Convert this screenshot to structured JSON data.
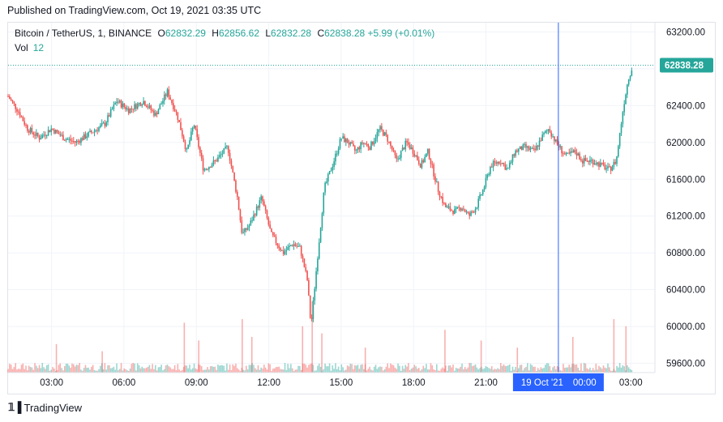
{
  "header": {
    "published": "Published on TradingView.com, Oct 19, 2021 03:35 UTC"
  },
  "legend": {
    "symbol": "Bitcoin / TetherUS, 1, BINANCE",
    "o_label": "O",
    "o_value": "62832.29",
    "h_label": "H",
    "h_value": "62856.62",
    "l_label": "L",
    "l_value": "62832.28",
    "c_label": "C",
    "c_value": "62838.28",
    "change": "+5.99 (+0.01%)",
    "vol_label": "Vol",
    "vol_value": "12"
  },
  "last_price": "62838.28",
  "crosshair_label": {
    "date": "19 Oct '21",
    "time": "00:00"
  },
  "footer": {
    "brand": "TradingView"
  },
  "colors": {
    "up": "#26a69a",
    "down": "#ef5350",
    "crosshair": "#2962ff",
    "label_bg": "#2962ff",
    "grid": "#f0f3fa"
  },
  "chart_data": {
    "type": "candlestick",
    "title": "Bitcoin / TetherUS, 1, BINANCE",
    "ylim": [
      59500,
      63300
    ],
    "y_ticks": [
      "63200.00",
      "62800.00",
      "62400.00",
      "62000.00",
      "61600.00",
      "61200.00",
      "60800.00",
      "60400.00",
      "60000.00",
      "59600.00"
    ],
    "y_tick_values": [
      63200,
      62800,
      62400,
      62000,
      61600,
      61200,
      60800,
      60400,
      60000,
      59600
    ],
    "x_ticks": [
      "03:00",
      "06:00",
      "09:00",
      "12:00",
      "15:00",
      "18:00",
      "21:00",
      "03:00"
    ],
    "x_tick_hours": [
      3,
      6,
      9,
      12,
      15,
      18,
      21,
      27
    ],
    "x_range_hours": [
      1.2,
      28.0
    ],
    "crosshair_hour": 24.0,
    "price_path": [
      {
        "h": 1.2,
        "p": 62500
      },
      {
        "h": 1.6,
        "p": 62350
      },
      {
        "h": 2.0,
        "p": 62150
      },
      {
        "h": 2.5,
        "p": 62050
      },
      {
        "h": 3.0,
        "p": 62150
      },
      {
        "h": 3.5,
        "p": 62050
      },
      {
        "h": 4.0,
        "p": 62000
      },
      {
        "h": 4.6,
        "p": 62100
      },
      {
        "h": 5.2,
        "p": 62200
      },
      {
        "h": 5.7,
        "p": 62450
      },
      {
        "h": 6.2,
        "p": 62350
      },
      {
        "h": 6.8,
        "p": 62450
      },
      {
        "h": 7.3,
        "p": 62300
      },
      {
        "h": 7.8,
        "p": 62550
      },
      {
        "h": 8.2,
        "p": 62300
      },
      {
        "h": 8.6,
        "p": 61900
      },
      {
        "h": 8.9,
        "p": 62200
      },
      {
        "h": 9.3,
        "p": 61700
      },
      {
        "h": 9.8,
        "p": 61800
      },
      {
        "h": 10.3,
        "p": 61950
      },
      {
        "h": 10.7,
        "p": 61400
      },
      {
        "h": 10.9,
        "p": 61000
      },
      {
        "h": 11.2,
        "p": 61100
      },
      {
        "h": 11.7,
        "p": 61400
      },
      {
        "h": 12.1,
        "p": 61000
      },
      {
        "h": 12.6,
        "p": 60800
      },
      {
        "h": 13.0,
        "p": 60900
      },
      {
        "h": 13.3,
        "p": 60850
      },
      {
        "h": 13.6,
        "p": 60500
      },
      {
        "h": 13.75,
        "p": 60000
      },
      {
        "h": 14.0,
        "p": 60700
      },
      {
        "h": 14.3,
        "p": 61500
      },
      {
        "h": 14.7,
        "p": 61800
      },
      {
        "h": 15.0,
        "p": 62050
      },
      {
        "h": 15.3,
        "p": 62000
      },
      {
        "h": 15.6,
        "p": 61900
      },
      {
        "h": 15.9,
        "p": 62000
      },
      {
        "h": 16.2,
        "p": 61950
      },
      {
        "h": 16.6,
        "p": 62150
      },
      {
        "h": 16.9,
        "p": 62050
      },
      {
        "h": 17.3,
        "p": 61800
      },
      {
        "h": 17.7,
        "p": 62000
      },
      {
        "h": 18.0,
        "p": 61900
      },
      {
        "h": 18.3,
        "p": 61750
      },
      {
        "h": 18.6,
        "p": 61900
      },
      {
        "h": 19.0,
        "p": 61500
      },
      {
        "h": 19.3,
        "p": 61300
      },
      {
        "h": 19.7,
        "p": 61250
      },
      {
        "h": 20.0,
        "p": 61300
      },
      {
        "h": 20.3,
        "p": 61200
      },
      {
        "h": 20.6,
        "p": 61300
      },
      {
        "h": 20.9,
        "p": 61500
      },
      {
        "h": 21.2,
        "p": 61750
      },
      {
        "h": 21.6,
        "p": 61800
      },
      {
        "h": 21.9,
        "p": 61700
      },
      {
        "h": 22.2,
        "p": 61900
      },
      {
        "h": 22.6,
        "p": 61950
      },
      {
        "h": 23.0,
        "p": 61900
      },
      {
        "h": 23.3,
        "p": 62050
      },
      {
        "h": 23.6,
        "p": 62150
      },
      {
        "h": 23.9,
        "p": 62000
      },
      {
        "h": 24.3,
        "p": 61850
      },
      {
        "h": 24.7,
        "p": 61900
      },
      {
        "h": 25.0,
        "p": 61800
      },
      {
        "h": 25.4,
        "p": 61800
      },
      {
        "h": 25.8,
        "p": 61750
      },
      {
        "h": 26.1,
        "p": 61700
      },
      {
        "h": 26.4,
        "p": 61800
      },
      {
        "h": 26.7,
        "p": 62400
      },
      {
        "h": 26.9,
        "p": 62700
      },
      {
        "h": 27.1,
        "p": 62840
      }
    ],
    "volume_spikes": [
      {
        "h": 8.5,
        "v": 28
      },
      {
        "h": 9.1,
        "v": 18
      },
      {
        "h": 10.9,
        "v": 30
      },
      {
        "h": 11.3,
        "v": 20
      },
      {
        "h": 13.4,
        "v": 26
      },
      {
        "h": 13.8,
        "v": 40
      },
      {
        "h": 14.2,
        "v": 22
      },
      {
        "h": 16.0,
        "v": 14
      },
      {
        "h": 19.3,
        "v": 24
      },
      {
        "h": 20.8,
        "v": 18
      },
      {
        "h": 22.3,
        "v": 14
      },
      {
        "h": 24.6,
        "v": 20
      },
      {
        "h": 26.3,
        "v": 30
      },
      {
        "h": 26.8,
        "v": 26
      },
      {
        "h": 3.2,
        "v": 16
      },
      {
        "h": 5.1,
        "v": 12
      }
    ]
  }
}
